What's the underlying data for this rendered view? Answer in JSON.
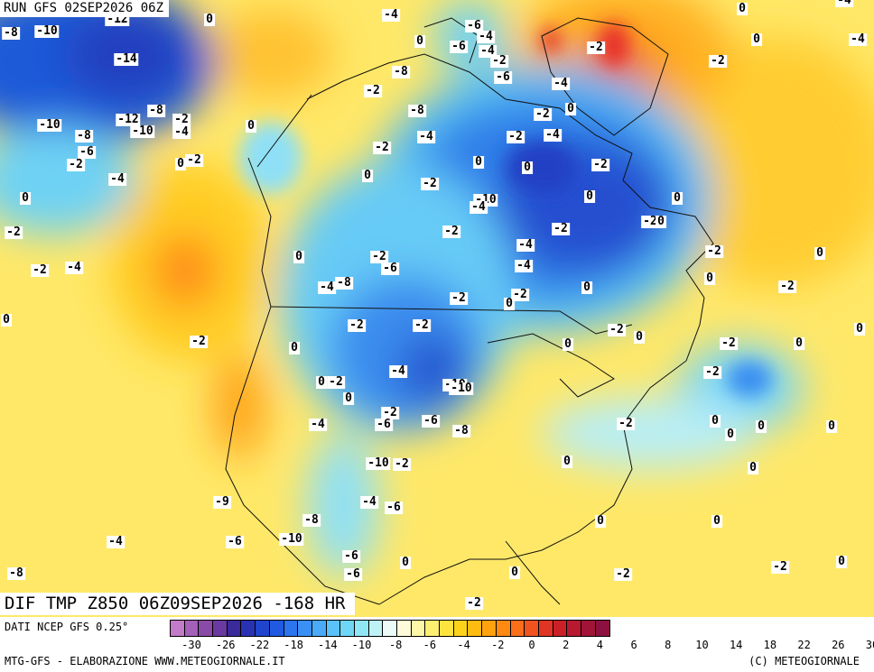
{
  "header": {
    "run_title": "RUN GFS 02SEP2026 06Z"
  },
  "field": {
    "title": "DIF TMP Z850 06Z09SEP2026 -168 HR"
  },
  "footer": {
    "source": "DATI NCEP GFS 0.25°",
    "credit_left": "MTG-GFS - ELABORAZIONE WWW.METEOGIORNALE.IT",
    "credit_right": "(C) METEOGIORNALE"
  },
  "colorbar": {
    "colors": [
      "#c27ac9",
      "#a560b8",
      "#8a4aa8",
      "#6a3aa0",
      "#3a2a9a",
      "#2a32b4",
      "#1f45cc",
      "#1f5ae0",
      "#2b75ee",
      "#3b90f6",
      "#4aaaf8",
      "#5ac2f8",
      "#6fd6f6",
      "#8fe6f4",
      "#bff2f6",
      "#ecfbf8",
      "#fffbd8",
      "#fff7a8",
      "#ffef70",
      "#ffe440",
      "#ffd21a",
      "#ffbc10",
      "#ffa20e",
      "#ff8a12",
      "#fb6e1a",
      "#f05220",
      "#e03424",
      "#cc2028",
      "#b81830",
      "#a01438",
      "#8c1040"
    ],
    "tick_labels": [
      "-30",
      "-26",
      "-22",
      "-18",
      "-14",
      "-10",
      "-8",
      "-6",
      "-4",
      "-2",
      "0",
      "2",
      "4",
      "6",
      "8",
      "10",
      "14",
      "18",
      "22",
      "26",
      "30"
    ]
  },
  "map_labels": [
    "-8",
    "-10",
    "-12",
    "-14",
    "-12",
    "-8",
    "-2",
    "-10",
    "-10",
    "-4",
    "-8",
    "-6",
    "-2",
    "0",
    "-2",
    "-4",
    "0",
    "0",
    "-2",
    "0",
    "-2",
    "-4",
    "0",
    "-2",
    "0",
    "-4",
    "-8",
    "-2",
    "-2",
    "-6",
    "-2",
    "-4",
    "-2",
    "-6",
    "0",
    "0",
    "-2",
    "0",
    "-4",
    "-6",
    "-8",
    "-10",
    "-10",
    "-10",
    "-2",
    "-4",
    "-6",
    "-8",
    "-9",
    "-6",
    "-10",
    "-4",
    "-8",
    "-6",
    "-6",
    "0",
    "-2",
    "-4",
    "-6",
    "-4",
    "0",
    "-6",
    "-4",
    "-2",
    "-2",
    "-8",
    "-8",
    "-4",
    "-2",
    "0",
    "-2",
    "0",
    "-10",
    "-4",
    "-2",
    "0",
    "-6",
    "-2",
    "-4",
    "0",
    "-4",
    "-2",
    "0",
    "-2",
    "-4",
    "-4",
    "-2",
    "0",
    "-2",
    "-2",
    "0",
    "0",
    "-2",
    "0",
    "0",
    "-2",
    "0",
    "-2",
    "0",
    "0",
    "-2",
    "-2",
    "0",
    "0",
    "0",
    "0",
    "-2",
    "0",
    "0",
    "-2",
    "0",
    "0",
    "0",
    "0",
    "-2",
    "0",
    "-2",
    "0",
    "0",
    "-2",
    "-2",
    "-4",
    "0",
    "-4",
    "-2"
  ]
}
